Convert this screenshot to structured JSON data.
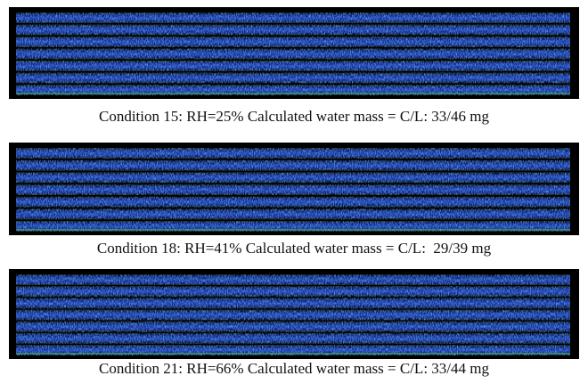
{
  "panels": [
    {
      "caption": "Condition 15: RH=25% Calculated water mass = C/L: 33/46 mg"
    },
    {
      "caption": "Condition 18: RH=41% Calculated water mass = C/L:  29/39 mg"
    },
    {
      "caption": "Condition 21: RH=66% Calculated water mass = C/L: 33/44 mg"
    }
  ]
}
